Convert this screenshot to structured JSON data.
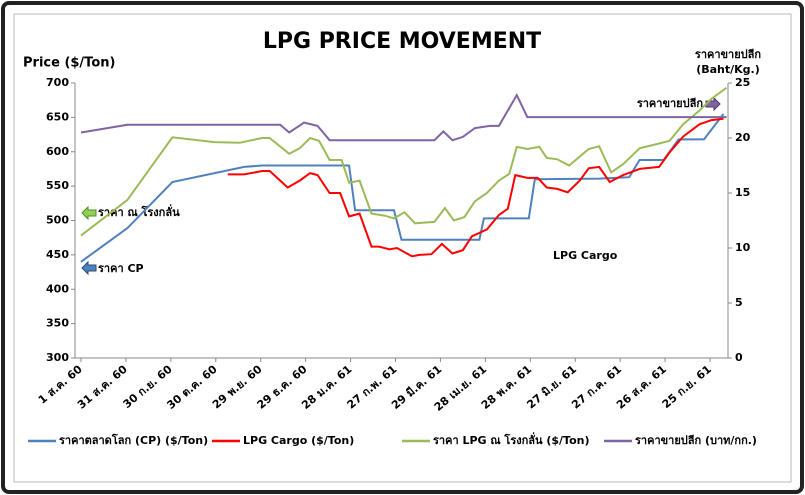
{
  "chart_data": {
    "type": "line",
    "title": "LPG PRICE MOVEMENT",
    "y_axis_label": "Price ($/Ton)",
    "y2_axis_label": [
      "ราคาขายปลีก",
      "(Baht/Kg.)"
    ],
    "xlim": [
      -4,
      432
    ],
    "xticks": [
      {
        "value": 0,
        "label": "1 ส.ค. 60"
      },
      {
        "value": 30,
        "label": "31 ส.ค. 60"
      },
      {
        "value": 60,
        "label": "30 ก.ย. 60"
      },
      {
        "value": 90,
        "label": "30 ต.ค. 60"
      },
      {
        "value": 120,
        "label": "29 พ.ย. 60"
      },
      {
        "value": 150,
        "label": "29 ธ.ค. 60"
      },
      {
        "value": 180,
        "label": "28 ม.ค. 61"
      },
      {
        "value": 210,
        "label": "27 ก.พ. 61"
      },
      {
        "value": 240,
        "label": "29 มี.ค. 61"
      },
      {
        "value": 270,
        "label": "28 เม.ย. 61"
      },
      {
        "value": 300,
        "label": "28 พ.ค. 61"
      },
      {
        "value": 330,
        "label": "27 มิ.ย. 61"
      },
      {
        "value": 360,
        "label": "27 ก.ค. 61"
      },
      {
        "value": 390,
        "label": "26 ส.ค. 61"
      },
      {
        "value": 420,
        "label": "25 ก.ย. 61"
      }
    ],
    "ylim": [
      300,
      700
    ],
    "yticks": [
      300,
      350,
      400,
      450,
      500,
      550,
      600,
      650,
      700
    ],
    "y2lim": [
      0,
      25
    ],
    "y2ticks": [
      0,
      5,
      10,
      15,
      20,
      25
    ],
    "grid": false,
    "series": [
      {
        "name": "ราคาตลาดโลก (CP) ($/Ton)",
        "color": "#4f81bd",
        "x": [
          0,
          31,
          61,
          109,
          121,
          179,
          183,
          209,
          214,
          266,
          269,
          299,
          303,
          346,
          366,
          373,
          389,
          399,
          416,
          429
        ],
        "values": [
          440,
          489,
          556,
          578,
          580,
          580,
          515,
          515,
          472,
          472,
          503,
          503,
          560,
          561,
          563,
          588,
          588,
          618,
          618,
          655
        ]
      },
      {
        "name": "LPG Cargo ($/Ton)",
        "color": "#ff0000",
        "x": [
          98,
          109,
          121,
          126,
          131,
          138,
          146,
          153,
          158,
          166,
          173,
          179,
          186,
          194,
          199,
          206,
          211,
          221,
          226,
          234,
          241,
          248,
          255,
          261,
          271,
          279,
          285,
          290,
          298,
          305,
          311,
          318,
          325,
          333,
          339,
          346,
          353,
          362,
          373,
          386,
          393,
          402,
          413,
          421,
          429
        ],
        "values": [
          567,
          567,
          572,
          572,
          562,
          548,
          558,
          569,
          566,
          540,
          540,
          506,
          510,
          462,
          462,
          458,
          460,
          448,
          450,
          451,
          466,
          452,
          457,
          477,
          487,
          508,
          517,
          566,
          562,
          562,
          548,
          546,
          541,
          558,
          576,
          578,
          556,
          566,
          575,
          578,
          599,
          622,
          640,
          646,
          648
        ]
      },
      {
        "name": "ราคา LPG ณ โรงกลั่น ($/Ton)",
        "color": "#9bbb59",
        "x": [
          0,
          31,
          61,
          89,
          106,
          121,
          126,
          139,
          146,
          153,
          159,
          166,
          174,
          179,
          186,
          194,
          203,
          209,
          216,
          223,
          229,
          236,
          243,
          249,
          256,
          263,
          271,
          279,
          286,
          291,
          298,
          306,
          311,
          318,
          326,
          339,
          346,
          354,
          362,
          373,
          386,
          393,
          402,
          413,
          421,
          431
        ],
        "values": [
          478,
          530,
          621,
          614,
          613,
          620,
          620,
          597,
          605,
          620,
          616,
          588,
          588,
          555,
          558,
          510,
          507,
          503,
          512,
          496,
          497,
          498,
          518,
          500,
          505,
          528,
          540,
          558,
          568,
          607,
          604,
          607,
          591,
          589,
          580,
          604,
          608,
          570,
          582,
          605,
          612,
          616,
          640,
          660,
          677,
          693
        ]
      },
      {
        "name": "ราคาขายปลีก (บาท/กก.)",
        "color": "#8064a2",
        "axis": "y2",
        "x": [
          0,
          31,
          133,
          139,
          149,
          158,
          166,
          236,
          242,
          248,
          255,
          263,
          273,
          279,
          291,
          298,
          431
        ],
        "values": [
          20.5,
          21.2,
          21.2,
          20.5,
          21.4,
          21.1,
          19.8,
          19.8,
          20.6,
          19.8,
          20.1,
          20.9,
          21.1,
          21.1,
          23.9,
          21.9,
          21.9
        ]
      }
    ],
    "annotations": [
      {
        "text": "ราคา ณ โรงกลั่น",
        "color": "#9bbb59"
      },
      {
        "text": "ราคา CP",
        "color": "#4f81bd"
      },
      {
        "text": "ราคาขายปลีก",
        "color": "#8064a2"
      },
      {
        "text": "LPG Cargo",
        "color": "#ff0000"
      }
    ]
  }
}
